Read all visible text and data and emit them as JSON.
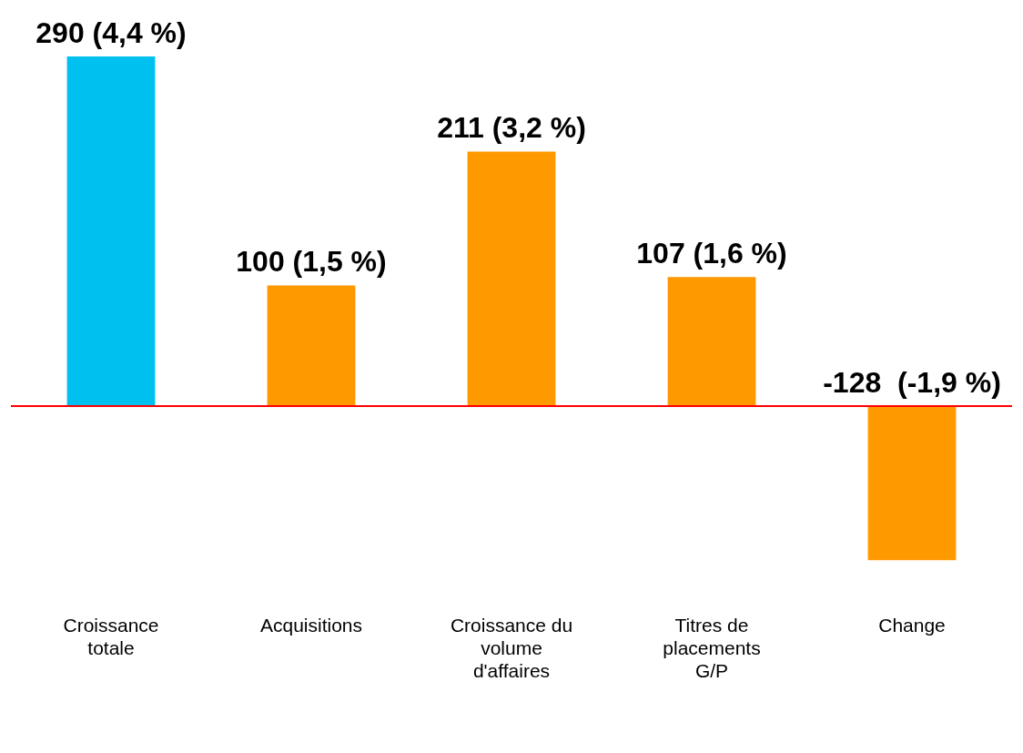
{
  "chart_data": {
    "type": "bar",
    "categories": [
      "Croissance totale",
      "Acquisitions",
      "Croissance du volume d'affaires",
      "Titres de placements G/P",
      "Change"
    ],
    "values": [
      290,
      100,
      211,
      107,
      -128
    ],
    "colors": [
      "#00c0f0",
      "#ff9900",
      "#ff9900",
      "#ff9900",
      "#ff9900"
    ],
    "value_labels": [
      "290 (4,4 %)",
      "100 (1,5 %)",
      "211 (3,2 %)",
      "107 (1,6 %)",
      "-128  (-1,9 %)"
    ],
    "ref_lines": [
      {
        "axis": "y",
        "value": 0,
        "color": "#ff0000"
      }
    ],
    "grid": false,
    "legend": false
  }
}
